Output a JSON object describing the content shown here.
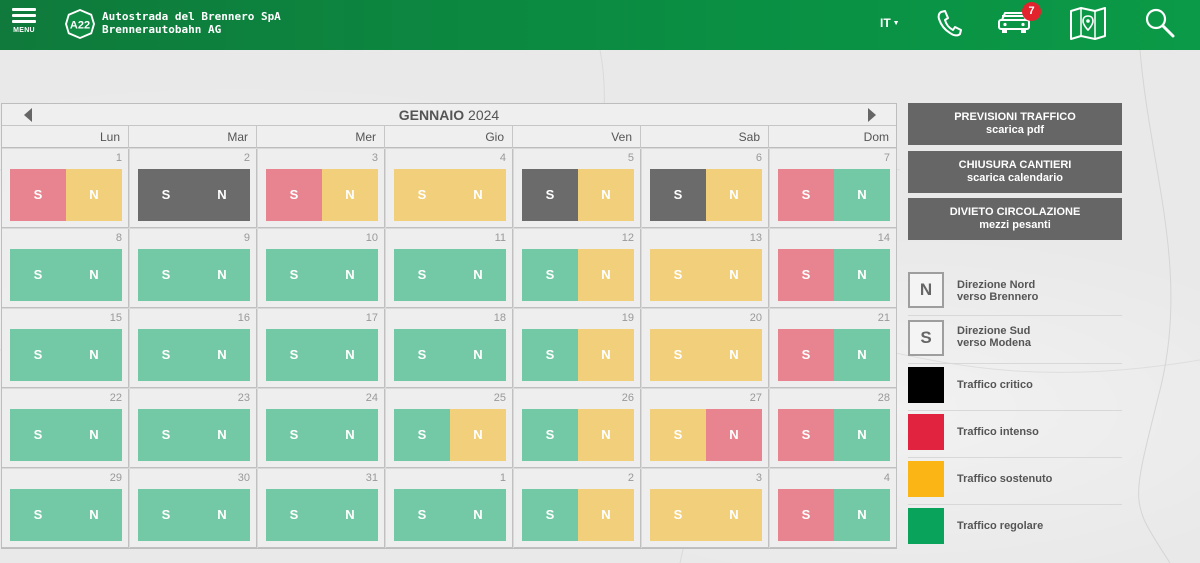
{
  "header": {
    "menu_label": "MENU",
    "logo_text": "A22",
    "brand_line1": "Autostrada del Brennero SpA",
    "brand_line2": "Brennerautobahn AG",
    "language": "IT",
    "notification_count": "7"
  },
  "calendar": {
    "month": "GENNAIO",
    "year": "2024",
    "weekdays": [
      "Lun",
      "Mar",
      "Mer",
      "Gio",
      "Ven",
      "Sab",
      "Dom"
    ],
    "south_label": "S",
    "north_label": "N",
    "weeks": [
      [
        {
          "day": "1",
          "s": "red",
          "n": "yellow"
        },
        {
          "day": "2",
          "s": "dark",
          "n": "dark"
        },
        {
          "day": "3",
          "s": "red",
          "n": "yellow"
        },
        {
          "day": "4",
          "s": "yellow",
          "n": "yellow"
        },
        {
          "day": "5",
          "s": "dark",
          "n": "yellow"
        },
        {
          "day": "6",
          "s": "dark",
          "n": "yellow"
        },
        {
          "day": "7",
          "s": "red",
          "n": "green"
        }
      ],
      [
        {
          "day": "8",
          "s": "green",
          "n": "green"
        },
        {
          "day": "9",
          "s": "green",
          "n": "green"
        },
        {
          "day": "10",
          "s": "green",
          "n": "green"
        },
        {
          "day": "11",
          "s": "green",
          "n": "green"
        },
        {
          "day": "12",
          "s": "green",
          "n": "yellow"
        },
        {
          "day": "13",
          "s": "yellow",
          "n": "yellow"
        },
        {
          "day": "14",
          "s": "red",
          "n": "green"
        }
      ],
      [
        {
          "day": "15",
          "s": "green",
          "n": "green"
        },
        {
          "day": "16",
          "s": "green",
          "n": "green"
        },
        {
          "day": "17",
          "s": "green",
          "n": "green"
        },
        {
          "day": "18",
          "s": "green",
          "n": "green"
        },
        {
          "day": "19",
          "s": "green",
          "n": "yellow"
        },
        {
          "day": "20",
          "s": "yellow",
          "n": "yellow"
        },
        {
          "day": "21",
          "s": "red",
          "n": "green"
        }
      ],
      [
        {
          "day": "22",
          "s": "green",
          "n": "green"
        },
        {
          "day": "23",
          "s": "green",
          "n": "green"
        },
        {
          "day": "24",
          "s": "green",
          "n": "green"
        },
        {
          "day": "25",
          "s": "green",
          "n": "yellow"
        },
        {
          "day": "26",
          "s": "green",
          "n": "yellow"
        },
        {
          "day": "27",
          "s": "yellow",
          "n": "red"
        },
        {
          "day": "28",
          "s": "red",
          "n": "green"
        }
      ],
      [
        {
          "day": "29",
          "s": "green",
          "n": "green"
        },
        {
          "day": "30",
          "s": "green",
          "n": "green"
        },
        {
          "day": "31",
          "s": "green",
          "n": "green"
        },
        {
          "day": "1",
          "s": "green",
          "n": "green"
        },
        {
          "day": "2",
          "s": "green",
          "n": "yellow"
        },
        {
          "day": "3",
          "s": "yellow",
          "n": "yellow"
        },
        {
          "day": "4",
          "s": "red",
          "n": "green"
        }
      ]
    ]
  },
  "buttons": {
    "forecast_line1": "PREVISIONI TRAFFICO",
    "forecast_line2": "scarica pdf",
    "closures_line1": "CHIUSURA CANTIERI",
    "closures_line2": "scarica calendario",
    "ban_line1": "DIVIETO CIRCOLAZIONE",
    "ban_line2": "mezzi pesanti"
  },
  "legend": {
    "north_letter": "N",
    "north_line1": "Direzione Nord",
    "north_line2": "verso Brennero",
    "south_letter": "S",
    "south_line1": "Direzione Sud",
    "south_line2": "verso Modena",
    "critical": "Traffico critico",
    "intense": "Traffico intenso",
    "sustained": "Traffico sostenuto",
    "regular": "Traffico regolare"
  },
  "colors": {
    "brand_green": "#0a8f43",
    "regular": "#73c9a6",
    "sustained": "#f2cf7b",
    "intense": "#e8848f",
    "critical": "#6b6b6b",
    "legend_critical": "#000000",
    "legend_intense": "#e2233f",
    "legend_sustained": "#fbb515",
    "legend_regular": "#0aa35c"
  },
  "icons": [
    "menu-icon",
    "a22-logo",
    "phone-icon",
    "traffic-car-icon",
    "map-book-icon",
    "search-icon"
  ]
}
